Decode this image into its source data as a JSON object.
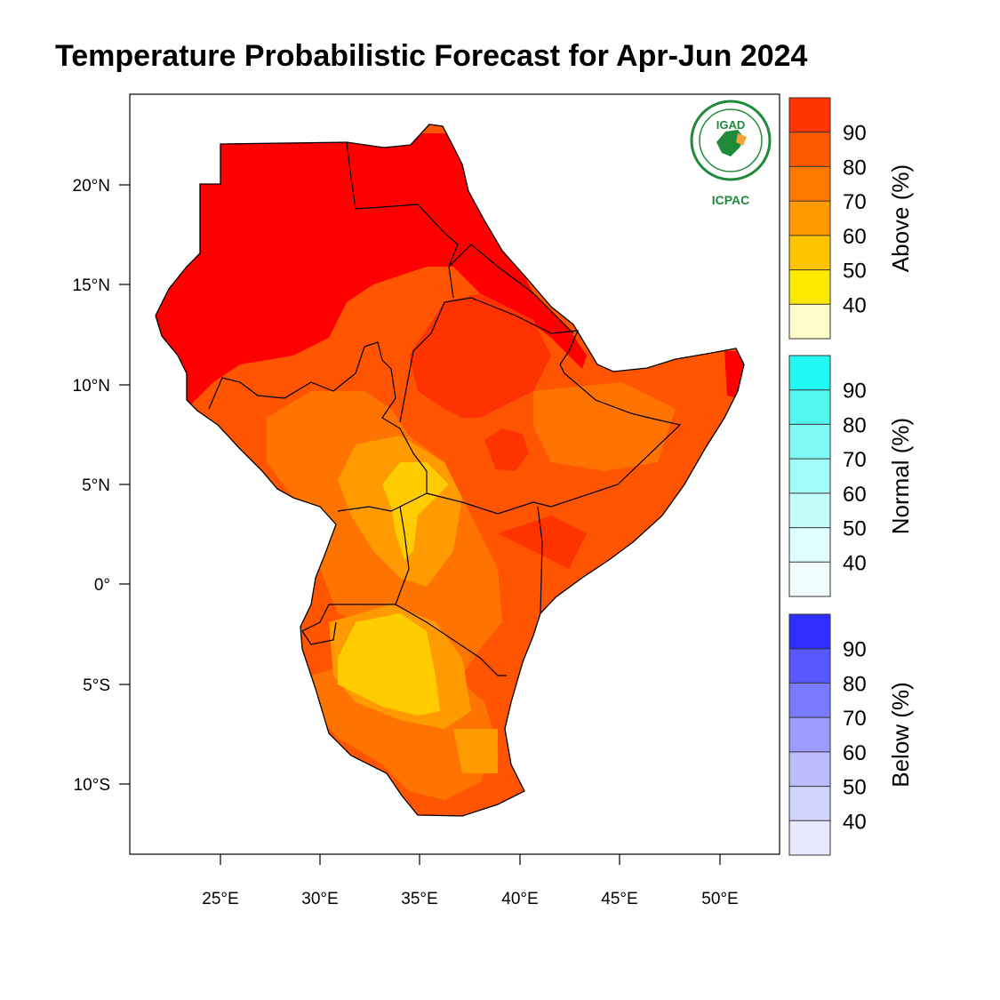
{
  "title": "Temperature Probabilistic Forecast for Apr-Jun 2024",
  "logo": {
    "top_text": "IGAD",
    "bottom_text": "ICPAC",
    "color": "#1f8a3a",
    "icon": "igad-icpac-emblem"
  },
  "axes": {
    "lat_ticks": [
      "20°N",
      "15°N",
      "10°N",
      "5°N",
      "0°",
      "5°S",
      "10°S"
    ],
    "lon_ticks": [
      "25°E",
      "30°E",
      "35°E",
      "40°E",
      "45°E",
      "50°E"
    ]
  },
  "colorbars": [
    {
      "label": "Above (%)",
      "levels": [
        "40",
        "50",
        "60",
        "70",
        "80",
        "90"
      ],
      "colors": [
        "#fffcc8",
        "#ffe800",
        "#ffc400",
        "#ff9a00",
        "#ff7800",
        "#ff5a00",
        "#ff3300"
      ]
    },
    {
      "label": "Normal (%)",
      "levels": [
        "40",
        "50",
        "60",
        "70",
        "80",
        "90"
      ],
      "colors": [
        "#f0fffe",
        "#ddfffd",
        "#c2fffb",
        "#a2fcf8",
        "#7ffaf4",
        "#55f8f0",
        "#22f8f2"
      ]
    },
    {
      "label": "Below (%)",
      "levels": [
        "40",
        "50",
        "60",
        "70",
        "80",
        "90"
      ],
      "colors": [
        "#e8e8ff",
        "#d2d2ff",
        "#bcbcff",
        "#9c9cff",
        "#7a7aff",
        "#5858ff",
        "#2e2eff"
      ]
    }
  ],
  "map": {
    "region": "Greater Horn of Africa",
    "category": "Above normal temperature",
    "palette": {
      "very_high": "#ff0000",
      "high": "#ff3300",
      "mid_high": "#ff5500",
      "mid": "#ff7400",
      "low": "#ff9a00",
      "lowest": "#ffcc00"
    }
  }
}
